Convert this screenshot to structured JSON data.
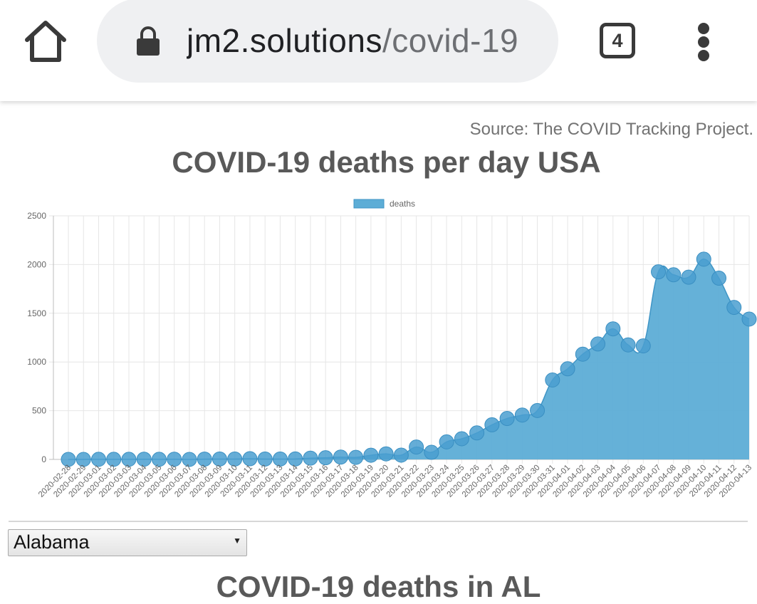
{
  "browser": {
    "url_domain": "jm2.solutions",
    "url_path": "/covid-19",
    "tab_count": "4"
  },
  "page": {
    "source": "Source: The COVID Tracking Project.",
    "title": "COVID-19 deaths per day USA",
    "state_selected": "Alabama",
    "subtitle": "COVID-19 deaths in AL"
  },
  "colors": {
    "series_fill": "#5dadd6",
    "series_point": "#4a9fd0",
    "title_text": "#595959"
  },
  "chart_data": {
    "type": "area",
    "legend": [
      "deaths"
    ],
    "legend_position": "top",
    "grid": true,
    "ylim": [
      0,
      2500
    ],
    "yticks": [
      0,
      500,
      1000,
      1500,
      2000,
      2500
    ],
    "categories": [
      "2020-02-28",
      "2020-02-29",
      "2020-03-01",
      "2020-03-02",
      "2020-03-03",
      "2020-03-04",
      "2020-03-05",
      "2020-03-06",
      "2020-03-07",
      "2020-03-08",
      "2020-03-09",
      "2020-03-10",
      "2020-03-11",
      "2020-03-12",
      "2020-03-13",
      "2020-03-14",
      "2020-03-15",
      "2020-03-16",
      "2020-03-17",
      "2020-03-18",
      "2020-03-19",
      "2020-03-20",
      "2020-03-21",
      "2020-03-22",
      "2020-03-23",
      "2020-03-24",
      "2020-03-25",
      "2020-03-26",
      "2020-03-27",
      "2020-03-28",
      "2020-03-29",
      "2020-03-30",
      "2020-03-31",
      "2020-04-01",
      "2020-04-02",
      "2020-04-03",
      "2020-04-04",
      "2020-04-05",
      "2020-04-06",
      "2020-04-07",
      "2020-04-08",
      "2020-04-09",
      "2020-04-10",
      "2020-04-11",
      "2020-04-12",
      "2020-04-13"
    ],
    "series": [
      {
        "name": "deaths",
        "values": [
          0,
          0,
          1,
          1,
          1,
          2,
          1,
          2,
          0,
          3,
          4,
          4,
          7,
          4,
          4,
          5,
          13,
          17,
          24,
          21,
          43,
          57,
          44,
          127,
          73,
          180,
          212,
          272,
          355,
          420,
          455,
          502,
          815,
          930,
          1080,
          1185,
          1340,
          1175,
          1165,
          1925,
          1895,
          1870,
          2055,
          1860,
          1560,
          1440
        ]
      }
    ]
  }
}
